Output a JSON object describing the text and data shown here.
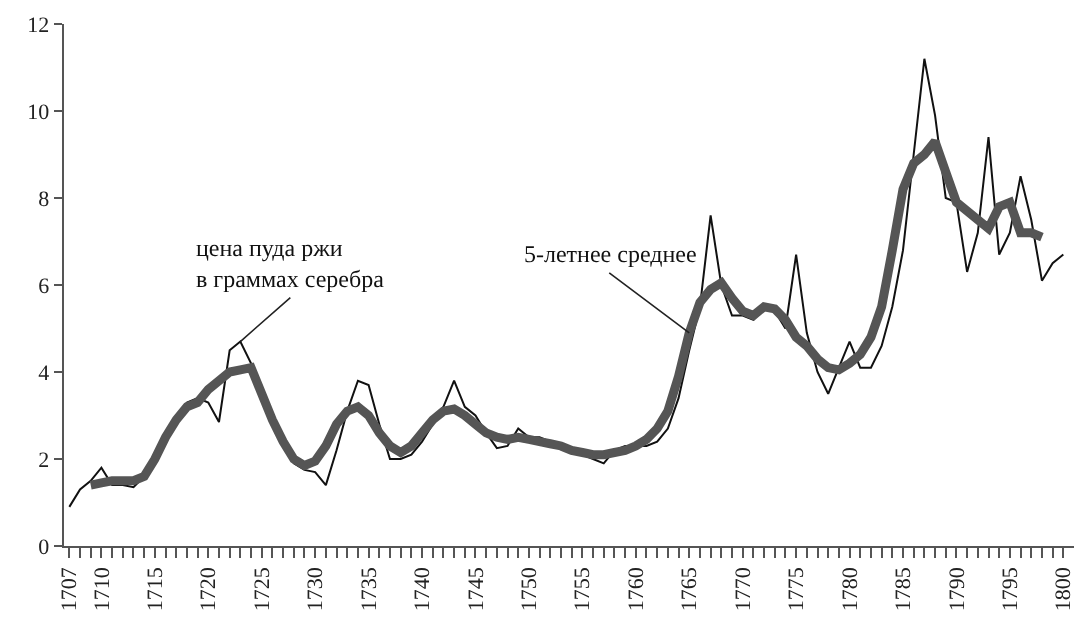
{
  "chart_data": {
    "type": "line",
    "xlim": [
      1706.5,
      1801
    ],
    "xticks": [
      1707,
      {
        "value": 1708,
        "label": null
      },
      {
        "value": 1709,
        "label": null
      },
      1710,
      {
        "value": 1711,
        "label": null
      },
      {
        "value": 1712,
        "label": null
      },
      {
        "value": 1713,
        "label": null
      },
      {
        "value": 1714,
        "label": null
      },
      1715,
      {
        "value": 1716,
        "label": null
      },
      {
        "value": 1717,
        "label": null
      },
      {
        "value": 1718,
        "label": null
      },
      {
        "value": 1719,
        "label": null
      },
      1720,
      {
        "value": 1721,
        "label": null
      },
      {
        "value": 1722,
        "label": null
      },
      {
        "value": 1723,
        "label": null
      },
      {
        "value": 1724,
        "label": null
      },
      1725,
      {
        "value": 1726,
        "label": null
      },
      {
        "value": 1727,
        "label": null
      },
      {
        "value": 1728,
        "label": null
      },
      {
        "value": 1729,
        "label": null
      },
      1730,
      {
        "value": 1731,
        "label": null
      },
      {
        "value": 1732,
        "label": null
      },
      {
        "value": 1733,
        "label": null
      },
      {
        "value": 1734,
        "label": null
      },
      1735,
      {
        "value": 1736,
        "label": null
      },
      {
        "value": 1737,
        "label": null
      },
      {
        "value": 1738,
        "label": null
      },
      {
        "value": 1739,
        "label": null
      },
      1740,
      {
        "value": 1741,
        "label": null
      },
      {
        "value": 1742,
        "label": null
      },
      {
        "value": 1743,
        "label": null
      },
      {
        "value": 1744,
        "label": null
      },
      1745,
      {
        "value": 1746,
        "label": null
      },
      {
        "value": 1747,
        "label": null
      },
      {
        "value": 1748,
        "label": null
      },
      {
        "value": 1749,
        "label": null
      },
      1750,
      {
        "value": 1751,
        "label": null
      },
      {
        "value": 1752,
        "label": null
      },
      {
        "value": 1753,
        "label": null
      },
      {
        "value": 1754,
        "label": null
      },
      1755,
      {
        "value": 1756,
        "label": null
      },
      {
        "value": 1757,
        "label": null
      },
      {
        "value": 1758,
        "label": null
      },
      {
        "value": 1759,
        "label": null
      },
      1760,
      {
        "value": 1761,
        "label": null
      },
      {
        "value": 1762,
        "label": null
      },
      {
        "value": 1763,
        "label": null
      },
      {
        "value": 1764,
        "label": null
      },
      1765,
      {
        "value": 1766,
        "label": null
      },
      {
        "value": 1767,
        "label": null
      },
      {
        "value": 1768,
        "label": null
      },
      {
        "value": 1769,
        "label": null
      },
      1770,
      {
        "value": 1771,
        "label": null
      },
      {
        "value": 1772,
        "label": null
      },
      {
        "value": 1773,
        "label": null
      },
      {
        "value": 1774,
        "label": null
      },
      1775,
      {
        "value": 1776,
        "label": null
      },
      {
        "value": 1777,
        "label": null
      },
      {
        "value": 1778,
        "label": null
      },
      {
        "value": 1779,
        "label": null
      },
      1780,
      {
        "value": 1781,
        "label": null
      },
      {
        "value": 1782,
        "label": null
      },
      {
        "value": 1783,
        "label": null
      },
      {
        "value": 1784,
        "label": null
      },
      1785,
      {
        "value": 1786,
        "label": null
      },
      {
        "value": 1787,
        "label": null
      },
      {
        "value": 1788,
        "label": null
      },
      {
        "value": 1789,
        "label": null
      },
      1790,
      {
        "value": 1791,
        "label": null
      },
      {
        "value": 1792,
        "label": null
      },
      {
        "value": 1793,
        "label": null
      },
      {
        "value": 1794,
        "label": null
      },
      1795,
      {
        "value": 1796,
        "label": null
      },
      {
        "value": 1797,
        "label": null
      },
      {
        "value": 1798,
        "label": null
      },
      {
        "value": 1799,
        "label": null
      },
      1800
    ],
    "ylim": [
      0,
      12
    ],
    "yticks": [
      0,
      2,
      4,
      6,
      8,
      10,
      12
    ],
    "marker": "none",
    "series": [
      {
        "color": "#111111",
        "line_style": "solid",
        "x": [
          1707,
          1708,
          1709,
          1710,
          1711,
          1712,
          1713,
          1714,
          1715,
          1716,
          1717,
          1718,
          1719,
          1720,
          1721,
          1722,
          1723,
          1724,
          1725,
          1726,
          1727,
          1728,
          1729,
          1730,
          1731,
          1732,
          1733,
          1734,
          1735,
          1736,
          1737,
          1738,
          1739,
          1740,
          1741,
          1742,
          1743,
          1744,
          1745,
          1746,
          1747,
          1748,
          1749,
          1750,
          1751,
          1752,
          1753,
          1754,
          1755,
          1756,
          1757,
          1758,
          1759,
          1760,
          1761,
          1762,
          1763,
          1764,
          1765,
          1766,
          1767,
          1768,
          1769,
          1770,
          1771,
          1772,
          1773,
          1774,
          1775,
          1776,
          1777,
          1778,
          1779,
          1780,
          1781,
          1782,
          1783,
          1784,
          1785,
          1786,
          1787,
          1788,
          1789,
          1790,
          1791,
          1792,
          1793,
          1794,
          1795,
          1796,
          1797,
          1798,
          1799,
          1800
        ],
        "values": [
          0.9,
          1.3,
          1.5,
          1.8,
          1.4,
          1.4,
          1.35,
          1.6,
          2.1,
          2.6,
          3.0,
          3.3,
          3.4,
          3.3,
          2.85,
          4.5,
          4.7,
          4.2,
          3.5,
          2.8,
          2.3,
          1.9,
          1.75,
          1.7,
          1.4,
          2.2,
          3.1,
          3.8,
          3.7,
          2.8,
          2.0,
          2.0,
          2.1,
          2.4,
          2.8,
          3.2,
          3.8,
          3.2,
          3.0,
          2.6,
          2.25,
          2.3,
          2.7,
          2.5,
          2.5,
          2.4,
          2.3,
          2.2,
          2.1,
          2.0,
          1.9,
          2.2,
          2.3,
          2.3,
          2.3,
          2.4,
          2.7,
          3.4,
          4.5,
          5.5,
          7.6,
          6.0,
          5.3,
          5.3,
          5.2,
          5.5,
          5.4,
          5.0,
          6.7,
          4.9,
          4.0,
          3.5,
          4.1,
          4.7,
          4.1,
          4.1,
          4.6,
          5.5,
          6.8,
          9.0,
          11.2,
          9.9,
          8.0,
          7.9,
          6.3,
          7.2,
          9.4,
          6.7,
          7.2,
          8.5,
          7.5,
          6.1,
          6.5,
          6.7
        ]
      },
      {
        "color": "#555555",
        "line_style": "solid",
        "x": [
          1709,
          1710,
          1711,
          1712,
          1713,
          1714,
          1715,
          1716,
          1717,
          1718,
          1719,
          1720,
          1721,
          1722,
          1723,
          1724,
          1725,
          1726,
          1727,
          1728,
          1729,
          1730,
          1731,
          1732,
          1733,
          1734,
          1735,
          1736,
          1737,
          1738,
          1739,
          1740,
          1741,
          1742,
          1743,
          1744,
          1745,
          1746,
          1747,
          1748,
          1749,
          1750,
          1751,
          1752,
          1753,
          1754,
          1755,
          1756,
          1757,
          1758,
          1759,
          1760,
          1761,
          1762,
          1763,
          1764,
          1765,
          1766,
          1767,
          1768,
          1769,
          1770,
          1771,
          1772,
          1773,
          1774,
          1775,
          1776,
          1777,
          1778,
          1779,
          1780,
          1781,
          1782,
          1783,
          1784,
          1785,
          1786,
          1787,
          1788,
          1789,
          1790,
          1791,
          1792,
          1793,
          1794,
          1795,
          1796,
          1797,
          1798
        ],
        "values": [
          1.4,
          1.45,
          1.5,
          1.5,
          1.5,
          1.6,
          2.0,
          2.5,
          2.9,
          3.2,
          3.3,
          3.6,
          3.8,
          4.0,
          4.05,
          4.1,
          3.5,
          2.9,
          2.4,
          2.0,
          1.85,
          1.95,
          2.3,
          2.8,
          3.1,
          3.2,
          3.0,
          2.6,
          2.3,
          2.15,
          2.3,
          2.6,
          2.9,
          3.1,
          3.15,
          3.0,
          2.8,
          2.6,
          2.5,
          2.45,
          2.5,
          2.45,
          2.4,
          2.35,
          2.3,
          2.2,
          2.15,
          2.1,
          2.1,
          2.15,
          2.2,
          2.3,
          2.45,
          2.7,
          3.1,
          3.9,
          4.9,
          5.6,
          5.9,
          6.05,
          5.7,
          5.4,
          5.3,
          5.5,
          5.45,
          5.2,
          4.8,
          4.6,
          4.3,
          4.1,
          4.05,
          4.2,
          4.4,
          4.8,
          5.5,
          6.8,
          8.2,
          8.8,
          9.0,
          9.3,
          8.6,
          7.9,
          7.7,
          7.5,
          7.3,
          7.8,
          7.9,
          7.2,
          7.2,
          7.1
        ]
      }
    ],
    "annotations": [
      {
        "text": "цена пуда ржи\nв граммах серебра",
        "x": 1723,
        "y": 4.7
      },
      {
        "text": "5-летнее среднее",
        "x": 1765,
        "y": 4.9
      }
    ]
  }
}
